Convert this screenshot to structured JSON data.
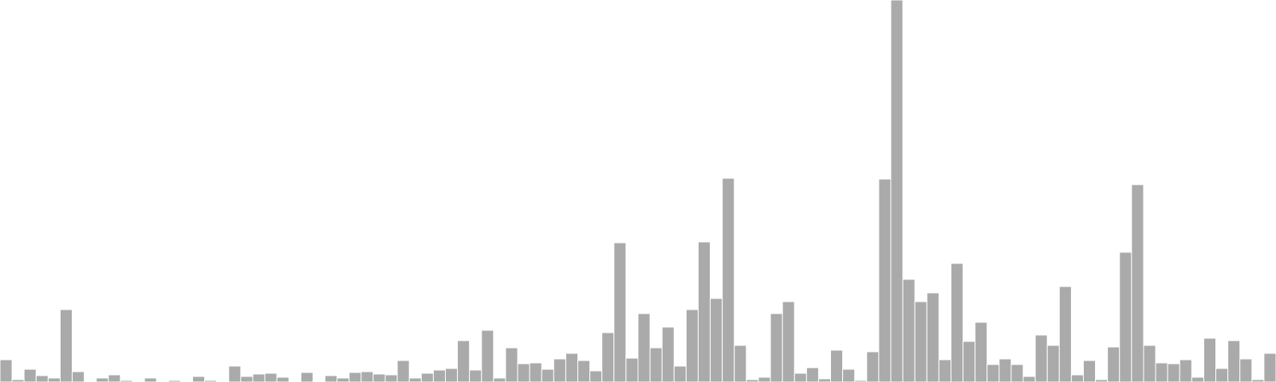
{
  "chart_data": {
    "type": "bar",
    "title": "",
    "xlabel": "",
    "ylabel": "",
    "colors": {
      "bar": "#aaaaaa",
      "background": "#ffffff"
    },
    "axes_visible": false,
    "grid": false,
    "ylim": [
      0,
      480
    ],
    "values": [
      28,
      3,
      16,
      8,
      5,
      91,
      13,
      0,
      5,
      9,
      2,
      1,
      5,
      0,
      2,
      1,
      7,
      2,
      1,
      20,
      7,
      10,
      11,
      6,
      0,
      12,
      0,
      8,
      5,
      12,
      13,
      10,
      9,
      27,
      5,
      11,
      15,
      17,
      52,
      15,
      65,
      5,
      43,
      23,
      24,
      16,
      29,
      36,
      27,
      14,
      62,
      175,
      30,
      86,
      43,
      69,
      20,
      91,
      176,
      105,
      256,
      46,
      3,
      6,
      86,
      101,
      11,
      18,
      4,
      40,
      16,
      2,
      38,
      255,
      480,
      129,
      101,
      112,
      28,
      149,
      51,
      75,
      22,
      29,
      22,
      7,
      59,
      46,
      120,
      9,
      27,
      3,
      44,
      163,
      248,
      46,
      24,
      23,
      28,
      6,
      55,
      17,
      52,
      29,
      3,
      36
    ]
  }
}
